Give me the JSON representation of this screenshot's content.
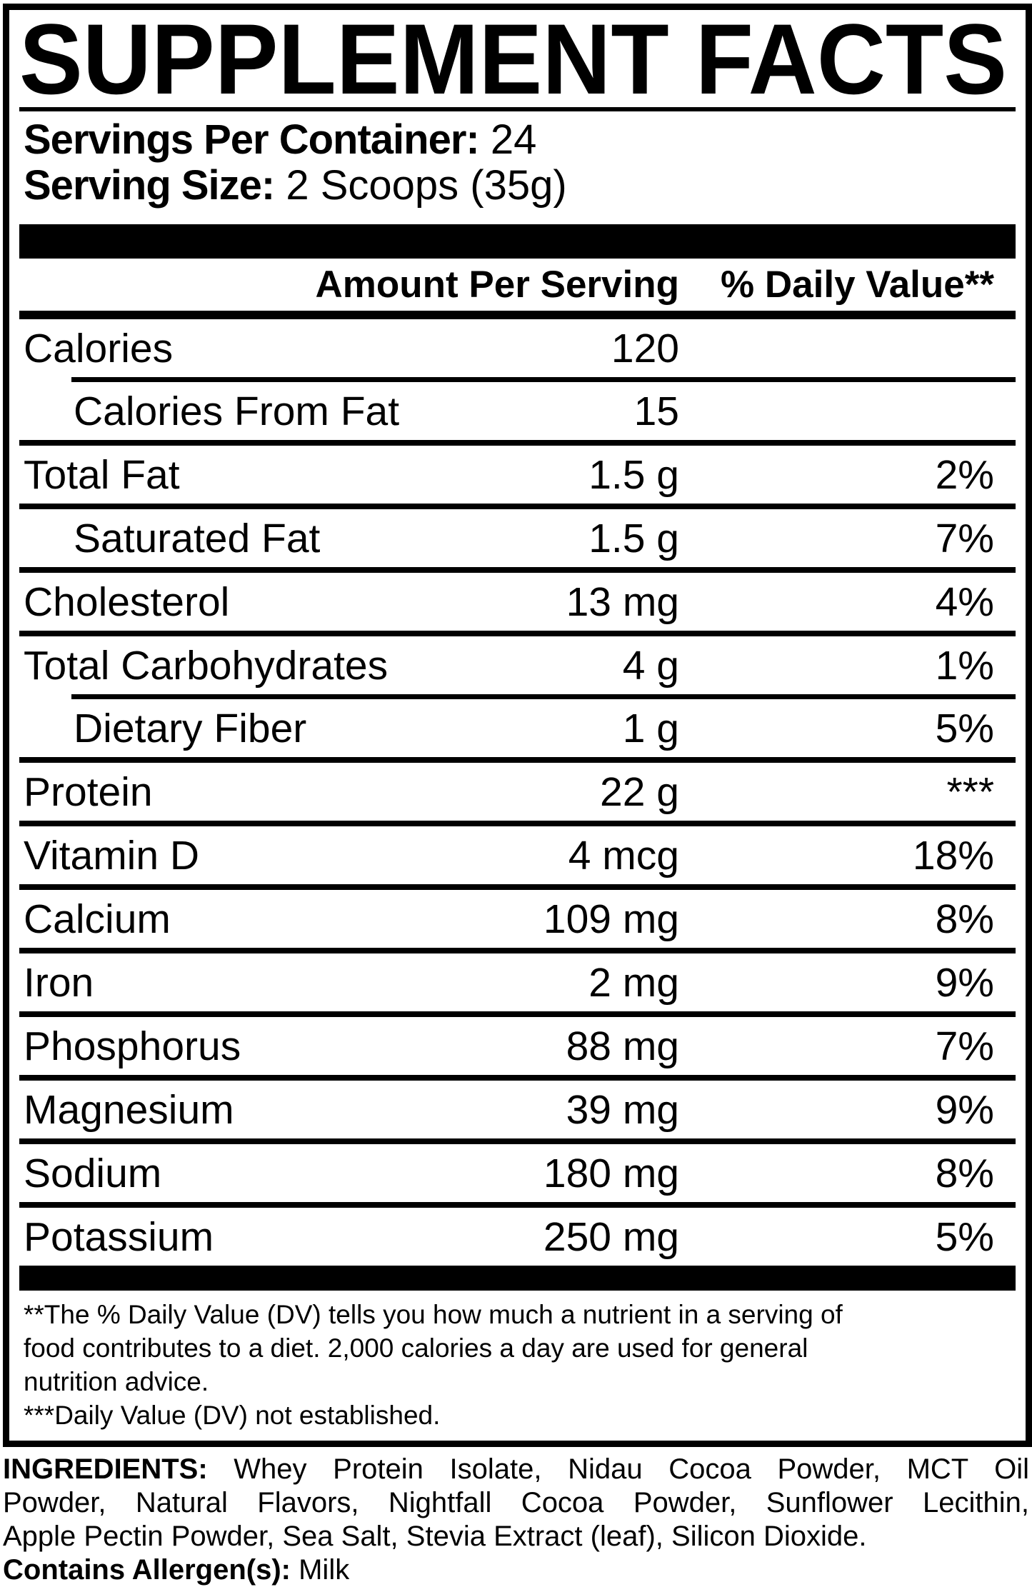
{
  "title": "SUPPLEMENT FACTS",
  "serving_info": {
    "per_container_label": "Servings Per Container:",
    "per_container_value": " 24",
    "size_label": "Serving Size:",
    "size_value": " 2 Scoops (35g)"
  },
  "header": {
    "amount": "Amount Per Serving",
    "daily_value": "% Daily Value**"
  },
  "rows": [
    {
      "name": "Calories",
      "amount": "120",
      "dv": "",
      "indent": false
    },
    {
      "name": "Calories From Fat",
      "amount": "15",
      "dv": "",
      "indent": true
    },
    {
      "name": "Total Fat",
      "amount": "1.5 g",
      "dv": "2%",
      "indent": false
    },
    {
      "name": "Saturated Fat",
      "amount": "1.5 g",
      "dv": "7%",
      "indent": true
    },
    {
      "name": "Cholesterol",
      "amount": "13 mg",
      "dv": "4%",
      "indent": false
    },
    {
      "name": "Total Carbohydrates",
      "amount": "4 g",
      "dv": "1%",
      "indent": false
    },
    {
      "name": "Dietary Fiber",
      "amount": "1 g",
      "dv": "5%",
      "indent": true
    },
    {
      "name": "Protein",
      "amount": "22 g",
      "dv": "***",
      "indent": false
    },
    {
      "name": "Vitamin D",
      "amount": "4 mcg",
      "dv": "18%",
      "indent": false
    },
    {
      "name": "Calcium",
      "amount": "109 mg",
      "dv": "8%",
      "indent": false
    },
    {
      "name": "Iron",
      "amount": "2 mg",
      "dv": "9%",
      "indent": false
    },
    {
      "name": "Phosphorus",
      "amount": "88 mg",
      "dv": "7%",
      "indent": false
    },
    {
      "name": "Magnesium",
      "amount": "39 mg",
      "dv": "9%",
      "indent": false
    },
    {
      "name": "Sodium",
      "amount": "180 mg",
      "dv": "8%",
      "indent": false
    },
    {
      "name": "Potassium",
      "amount": "250 mg",
      "dv": "5%",
      "indent": false
    }
  ],
  "footnotes": {
    "line1": "**The % Daily Value (DV) tells you how much a nutrient in a serving of",
    "line2": "food contributes to a diet. 2,000 calories a day are used for general",
    "line3": "nutrition advice.",
    "line4": "***Daily Value (DV) not established."
  },
  "ingredients": {
    "label": "INGREDIENTS:",
    "line1_rest": " Whey Protein Isolate, Nidau Cocoa Powder, MCT Oil",
    "line2": "Powder, Natural Flavors, Nightfall Cocoa Powder, Sunflower Lecithin,",
    "line3": "Apple Pectin Powder, Sea Salt, Stevia Extract (leaf), Silicon Dioxide.",
    "allergen_label": "Contains Allergen(s):",
    "allergen_value": " Milk"
  },
  "colors": {
    "ink": "#000000",
    "paper": "#ffffff"
  }
}
